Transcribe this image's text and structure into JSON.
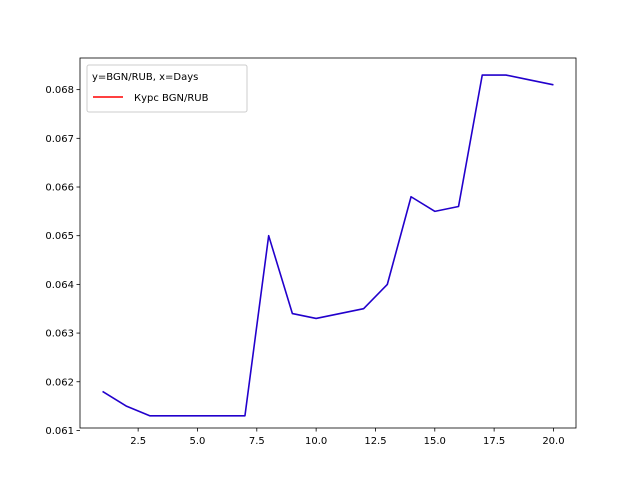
{
  "chart_data": {
    "type": "line",
    "title": "",
    "xlabel": "",
    "ylabel": "",
    "xlim": [
      0.05,
      20.95
    ],
    "ylim": [
      0.06105,
      0.06865
    ],
    "x_ticks": [
      2.5,
      5.0,
      7.5,
      10.0,
      12.5,
      15.0,
      17.5,
      20.0
    ],
    "x_tick_labels": [
      "2.5",
      "5.0",
      "7.5",
      "10.0",
      "12.5",
      "15.0",
      "17.5",
      "20.0"
    ],
    "y_ticks": [
      0.061,
      0.062,
      0.063,
      0.064,
      0.065,
      0.066,
      0.067,
      0.068
    ],
    "y_tick_labels": [
      "0.061",
      "0.062",
      "0.063",
      "0.064",
      "0.065",
      "0.066",
      "0.067",
      "0.068"
    ],
    "grid": false,
    "legend": {
      "placement": "top-left",
      "title": "y=BGN/RUB, x=Days",
      "entries": [
        {
          "label": "Курс BGN/RUB",
          "color": "#ff0000"
        }
      ]
    },
    "x": [
      1,
      2,
      3,
      4,
      5,
      6,
      7,
      8,
      9,
      10,
      11,
      12,
      13,
      14,
      15,
      16,
      17,
      18,
      19,
      20
    ],
    "series": [
      {
        "color": "#2200cc",
        "values": [
          0.0618,
          0.0615,
          0.0613,
          0.0613,
          0.0613,
          0.0613,
          0.0613,
          0.065,
          0.0634,
          0.0633,
          0.0634,
          0.0635,
          0.064,
          0.0658,
          0.0655,
          0.0656,
          0.0683,
          0.0683,
          0.0682,
          0.0681
        ]
      }
    ]
  }
}
